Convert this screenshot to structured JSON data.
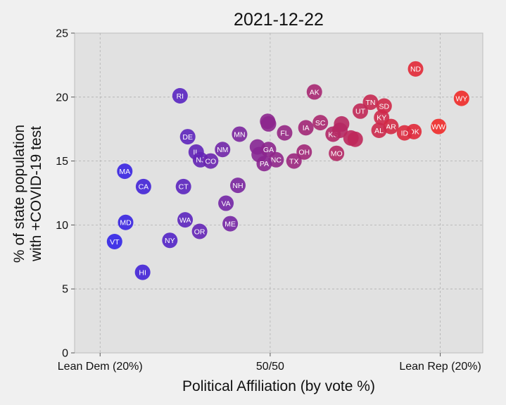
{
  "chart_data": {
    "type": "scatter",
    "title": "2021-12-22",
    "xlabel": "Political Affiliation (by vote %)",
    "ylabel_lines": [
      "% of state population",
      "with +COVID-19 test"
    ],
    "xlim": [
      -0.23,
      0.25
    ],
    "ylim": [
      0,
      25
    ],
    "x_ticks": [
      {
        "value": -0.2,
        "label": "Lean Dem (20%)"
      },
      {
        "value": 0,
        "label": "50/50"
      },
      {
        "value": 0.2,
        "label": "Lean Rep (20%)"
      }
    ],
    "y_ticks": [
      0,
      5,
      10,
      15,
      20,
      25
    ],
    "grid": true,
    "color_low": "#2a23f0",
    "color_high": "#f02a28",
    "plot_bg": "#e1e1e1",
    "points": [
      {
        "label": "ND",
        "x": 0.171,
        "y": 22.2
      },
      {
        "label": "WY",
        "x": 0.225,
        "y": 19.9
      },
      {
        "label": "RI",
        "x": -0.106,
        "y": 20.1
      },
      {
        "label": "AK",
        "x": 0.052,
        "y": 20.4
      },
      {
        "label": "TN",
        "x": 0.118,
        "y": 19.6
      },
      {
        "label": "SD",
        "x": 0.134,
        "y": 19.3
      },
      {
        "label": "UT",
        "x": 0.106,
        "y": 18.9
      },
      {
        "label": "KY",
        "x": 0.131,
        "y": 18.4
      },
      {
        "label": "SC",
        "x": 0.059,
        "y": 18.0
      },
      {
        "label": "",
        "x": -0.003,
        "y": 18.1
      },
      {
        "label": "",
        "x": -0.002,
        "y": 17.9
      },
      {
        "label": "",
        "x": 0.084,
        "y": 17.9
      },
      {
        "label": "AR",
        "x": 0.142,
        "y": 17.7
      },
      {
        "label": "IA",
        "x": 0.042,
        "y": 17.6
      },
      {
        "label": "WW",
        "x": 0.198,
        "y": 17.7
      },
      {
        "label": "AL",
        "x": 0.128,
        "y": 17.4
      },
      {
        "label": "OK",
        "x": 0.169,
        "y": 17.3
      },
      {
        "label": "ID",
        "x": 0.158,
        "y": 17.2
      },
      {
        "label": "FL",
        "x": 0.017,
        "y": 17.2
      },
      {
        "label": "KS",
        "x": 0.074,
        "y": 17.1
      },
      {
        "label": "",
        "x": 0.082,
        "y": 17.4
      },
      {
        "label": "",
        "x": 0.095,
        "y": 16.8
      },
      {
        "label": "",
        "x": 0.1,
        "y": 16.7
      },
      {
        "label": "MN",
        "x": -0.036,
        "y": 17.1
      },
      {
        "label": "DE",
        "x": -0.097,
        "y": 16.9
      },
      {
        "label": "",
        "x": -0.015,
        "y": 16.1
      },
      {
        "label": "",
        "x": -0.013,
        "y": 15.5
      },
      {
        "label": "NM",
        "x": -0.056,
        "y": 15.9
      },
      {
        "label": "GA",
        "x": -0.002,
        "y": 15.9
      },
      {
        "label": "OH",
        "x": 0.04,
        "y": 15.7
      },
      {
        "label": "MO",
        "x": 0.078,
        "y": 15.6
      },
      {
        "label": "IL",
        "x": -0.087,
        "y": 15.7
      },
      {
        "label": "NJ",
        "x": -0.082,
        "y": 15.1
      },
      {
        "label": "CO",
        "x": -0.07,
        "y": 15.0
      },
      {
        "label": "NC",
        "x": 0.007,
        "y": 15.1
      },
      {
        "label": "TX",
        "x": 0.028,
        "y": 15.0
      },
      {
        "label": "PA",
        "x": -0.007,
        "y": 14.8
      },
      {
        "label": "MA",
        "x": -0.171,
        "y": 14.2
      },
      {
        "label": "CA",
        "x": -0.149,
        "y": 13.0
      },
      {
        "label": "CT",
        "x": -0.102,
        "y": 13.0
      },
      {
        "label": "NH",
        "x": -0.038,
        "y": 13.1
      },
      {
        "label": "VA",
        "x": -0.052,
        "y": 11.7
      },
      {
        "label": "MD",
        "x": -0.17,
        "y": 10.2
      },
      {
        "label": "WA",
        "x": -0.1,
        "y": 10.4
      },
      {
        "label": "ME",
        "x": -0.047,
        "y": 10.1
      },
      {
        "label": "OR",
        "x": -0.083,
        "y": 9.5
      },
      {
        "label": "VT",
        "x": -0.183,
        "y": 8.7
      },
      {
        "label": "NY",
        "x": -0.118,
        "y": 8.8
      },
      {
        "label": "HI",
        "x": -0.15,
        "y": 6.3
      }
    ]
  }
}
